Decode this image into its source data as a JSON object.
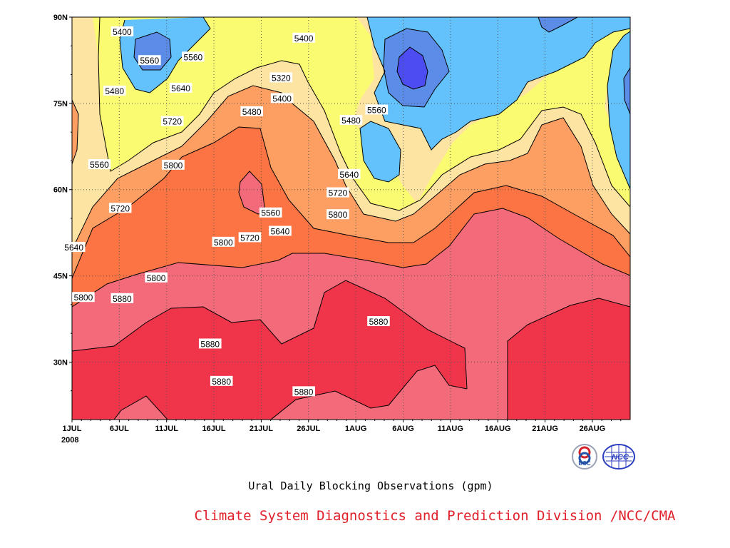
{
  "chart_data": {
    "type": "contour",
    "title": "Ural Daily Blocking Observations (gpm)",
    "x_ticks": [
      "1JUL",
      "6JUL",
      "11JUL",
      "16JUL",
      "21JUL",
      "26JUL",
      "1AUG",
      "6AUG",
      "11AUG",
      "16AUG",
      "21AUG",
      "26AUG"
    ],
    "x_year_label": "2008",
    "x_range_days": [
      0,
      59
    ],
    "y_ticks": [
      "30N",
      "45N",
      "60N",
      "75N",
      "90N"
    ],
    "y_tick_values": [
      30,
      45,
      60,
      75,
      90
    ],
    "y_range": [
      20,
      90
    ],
    "grid": "dotted",
    "levels": [
      5320,
      5400,
      5480,
      5560,
      5640,
      5720,
      5800,
      5880
    ],
    "level_colors": {
      "below_5320": "#4b4df2",
      "5320_5400": "#5b8de8",
      "5400_5480": "#63c1fb",
      "5480_5560": "#fbfb71",
      "5560_5640": "#fde4a2",
      "5640_5720": "#fd9e62",
      "5720_5800": "#fc7443",
      "5800_5880": "#f36b7b",
      "above_5880": "#f03449"
    },
    "contour_labels": [
      {
        "text": "5400",
        "day": 5.3,
        "lat": 87.4
      },
      {
        "text": "5560",
        "day": 8.2,
        "lat": 82.4
      },
      {
        "text": "5560",
        "day": 12.8,
        "lat": 83.0
      },
      {
        "text": "5480",
        "day": 4.5,
        "lat": 77.1
      },
      {
        "text": "5640",
        "day": 11.5,
        "lat": 77.6
      },
      {
        "text": "5720",
        "day": 10.6,
        "lat": 71.8
      },
      {
        "text": "5560",
        "day": 2.9,
        "lat": 64.3
      },
      {
        "text": "5800",
        "day": 10.7,
        "lat": 64.2
      },
      {
        "text": "5720",
        "day": 5.1,
        "lat": 56.7
      },
      {
        "text": "5640",
        "day": 0.2,
        "lat": 49.9
      },
      {
        "text": "5800",
        "day": 16.0,
        "lat": 50.8
      },
      {
        "text": "5720",
        "day": 18.8,
        "lat": 51.6
      },
      {
        "text": "5800",
        "day": 8.9,
        "lat": 44.6
      },
      {
        "text": "5800",
        "day": 1.2,
        "lat": 41.2
      },
      {
        "text": "5880",
        "day": 5.3,
        "lat": 41.0
      },
      {
        "text": "5880",
        "day": 14.6,
        "lat": 33.1
      },
      {
        "text": "5880",
        "day": 15.8,
        "lat": 26.6
      },
      {
        "text": "5400",
        "day": 24.5,
        "lat": 86.3
      },
      {
        "text": "5320",
        "day": 22.1,
        "lat": 79.4
      },
      {
        "text": "5400",
        "day": 22.2,
        "lat": 75.8
      },
      {
        "text": "5480",
        "day": 19.0,
        "lat": 73.5
      },
      {
        "text": "5560",
        "day": 21.0,
        "lat": 55.9
      },
      {
        "text": "5640",
        "day": 22.0,
        "lat": 52.7
      },
      {
        "text": "5480",
        "day": 29.5,
        "lat": 72.0
      },
      {
        "text": "5640",
        "day": 29.3,
        "lat": 62.6
      },
      {
        "text": "5720",
        "day": 28.1,
        "lat": 59.4
      },
      {
        "text": "5800",
        "day": 28.1,
        "lat": 55.6
      },
      {
        "text": "5560",
        "day": 32.2,
        "lat": 73.8
      },
      {
        "text": "5880",
        "day": 32.4,
        "lat": 37.0
      },
      {
        "text": "5880",
        "day": 24.5,
        "lat": 24.8
      }
    ],
    "logos": [
      "BCC",
      "NCC"
    ]
  },
  "footer": {
    "credit": "Climate System Diagnostics and Prediction Division /NCC/CMA"
  }
}
